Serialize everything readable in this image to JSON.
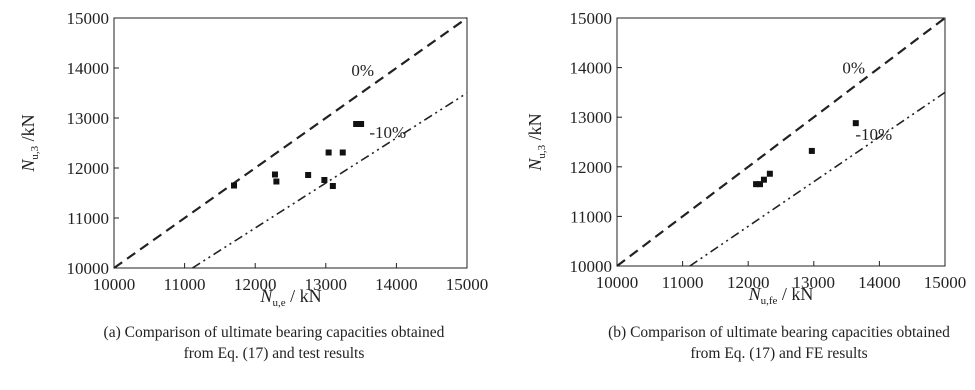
{
  "chart_data": [
    {
      "type": "scatter",
      "panel": "a",
      "xlabel_main": "N",
      "xlabel_sub": "u,e",
      "xlabel_unit": " / kN",
      "ylabel_main": "N",
      "ylabel_sub": "u,3",
      "ylabel_unit": " /kN",
      "xlim": [
        10000,
        15000
      ],
      "ylim": [
        10000,
        15000
      ],
      "xticks": [
        10000,
        11000,
        12000,
        13000,
        14000,
        15000
      ],
      "yticks": [
        10000,
        11000,
        12000,
        13000,
        14000,
        15000
      ],
      "grid": false,
      "reference_lines": [
        {
          "label": "0%",
          "factor": 1.0,
          "style": "dashed"
        },
        {
          "label": "-10%",
          "factor": 0.9,
          "style": "dash-dot-dot"
        }
      ],
      "points": [
        {
          "x": 11700,
          "y": 11650
        },
        {
          "x": 12280,
          "y": 11870
        },
        {
          "x": 12300,
          "y": 11730
        },
        {
          "x": 12750,
          "y": 11860
        },
        {
          "x": 12980,
          "y": 11760
        },
        {
          "x": 13040,
          "y": 12310
        },
        {
          "x": 13100,
          "y": 11640
        },
        {
          "x": 13240,
          "y": 12310
        },
        {
          "x": 13430,
          "y": 12880
        },
        {
          "x": 13500,
          "y": 12880
        }
      ],
      "caption_lines": [
        "(a) Comparison of ultimate bearing capacities obtained",
        "from Eq. (17) and test results"
      ]
    },
    {
      "type": "scatter",
      "panel": "b",
      "xlabel_main": "N",
      "xlabel_sub": "u,fe",
      "xlabel_unit": " / kN",
      "ylabel_main": "N",
      "ylabel_sub": "u,3",
      "ylabel_unit": " /kN",
      "xlim": [
        10000,
        15000
      ],
      "ylim": [
        10000,
        15000
      ],
      "xticks": [
        10000,
        11000,
        12000,
        13000,
        14000,
        15000
      ],
      "yticks": [
        10000,
        11000,
        12000,
        13000,
        14000,
        15000
      ],
      "grid": false,
      "reference_lines": [
        {
          "label": "0%",
          "factor": 1.0,
          "style": "dashed"
        },
        {
          "label": "-10%",
          "factor": 0.9,
          "style": "dash-dot-dot"
        }
      ],
      "points": [
        {
          "x": 12120,
          "y": 11650
        },
        {
          "x": 12180,
          "y": 11650
        },
        {
          "x": 12240,
          "y": 11740
        },
        {
          "x": 12330,
          "y": 11860
        },
        {
          "x": 12970,
          "y": 12320
        },
        {
          "x": 13640,
          "y": 12880
        }
      ],
      "caption_lines": [
        "(b) Comparison of ultimate bearing capacities obtained",
        "from Eq. (17) and FE results"
      ]
    }
  ]
}
